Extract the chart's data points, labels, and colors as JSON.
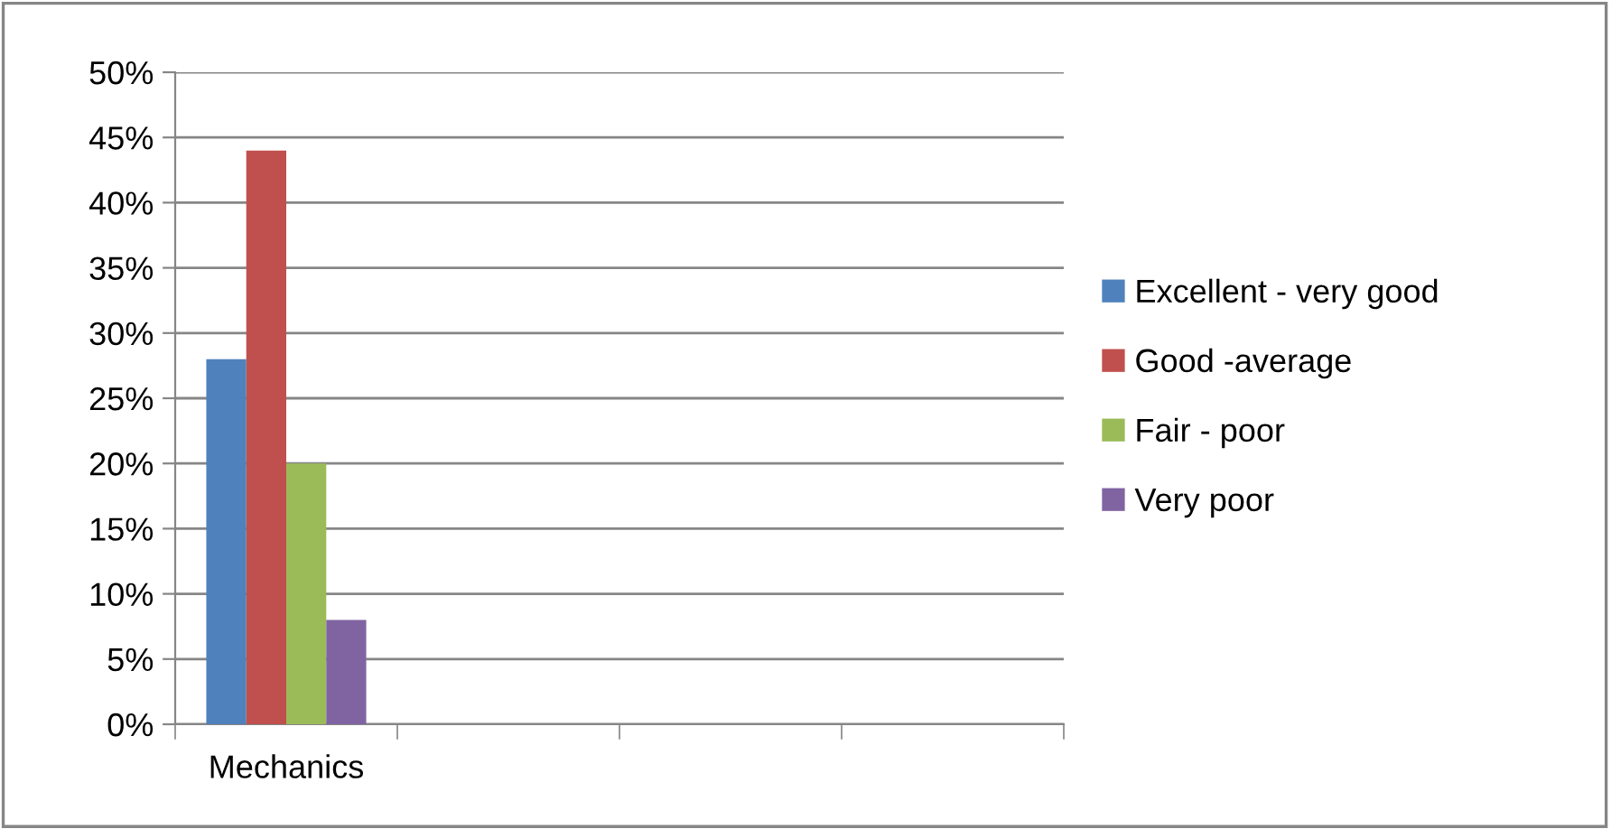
{
  "chart_data": {
    "type": "bar",
    "categories": [
      "Mechanics",
      null,
      null,
      null
    ],
    "series": [
      {
        "name": "Excellent - very good",
        "color": "#4f81bd",
        "values": [
          28,
          null,
          null,
          null
        ]
      },
      {
        "name": "Good -average",
        "color": "#c0504d",
        "values": [
          44,
          null,
          null,
          null
        ]
      },
      {
        "name": "Fair - poor",
        "color": "#9bbb59",
        "values": [
          20,
          null,
          null,
          null
        ]
      },
      {
        "name": "Very poor",
        "color": "#8064a2",
        "values": [
          8,
          null,
          null,
          null
        ]
      }
    ],
    "ylim": [
      0,
      50
    ],
    "yticks": [
      {
        "value": 0,
        "label": "0%"
      },
      {
        "value": 5,
        "label": "5%"
      },
      {
        "value": 10,
        "label": "10%"
      },
      {
        "value": 15,
        "label": "15%"
      },
      {
        "value": 20,
        "label": "20%"
      },
      {
        "value": 25,
        "label": "25%"
      },
      {
        "value": 30,
        "label": "30%"
      },
      {
        "value": 35,
        "label": "35%"
      },
      {
        "value": 40,
        "label": "40%"
      },
      {
        "value": 45,
        "label": "45%"
      },
      {
        "value": 50,
        "label": "50%"
      }
    ],
    "grid": "y",
    "legend": "right"
  }
}
